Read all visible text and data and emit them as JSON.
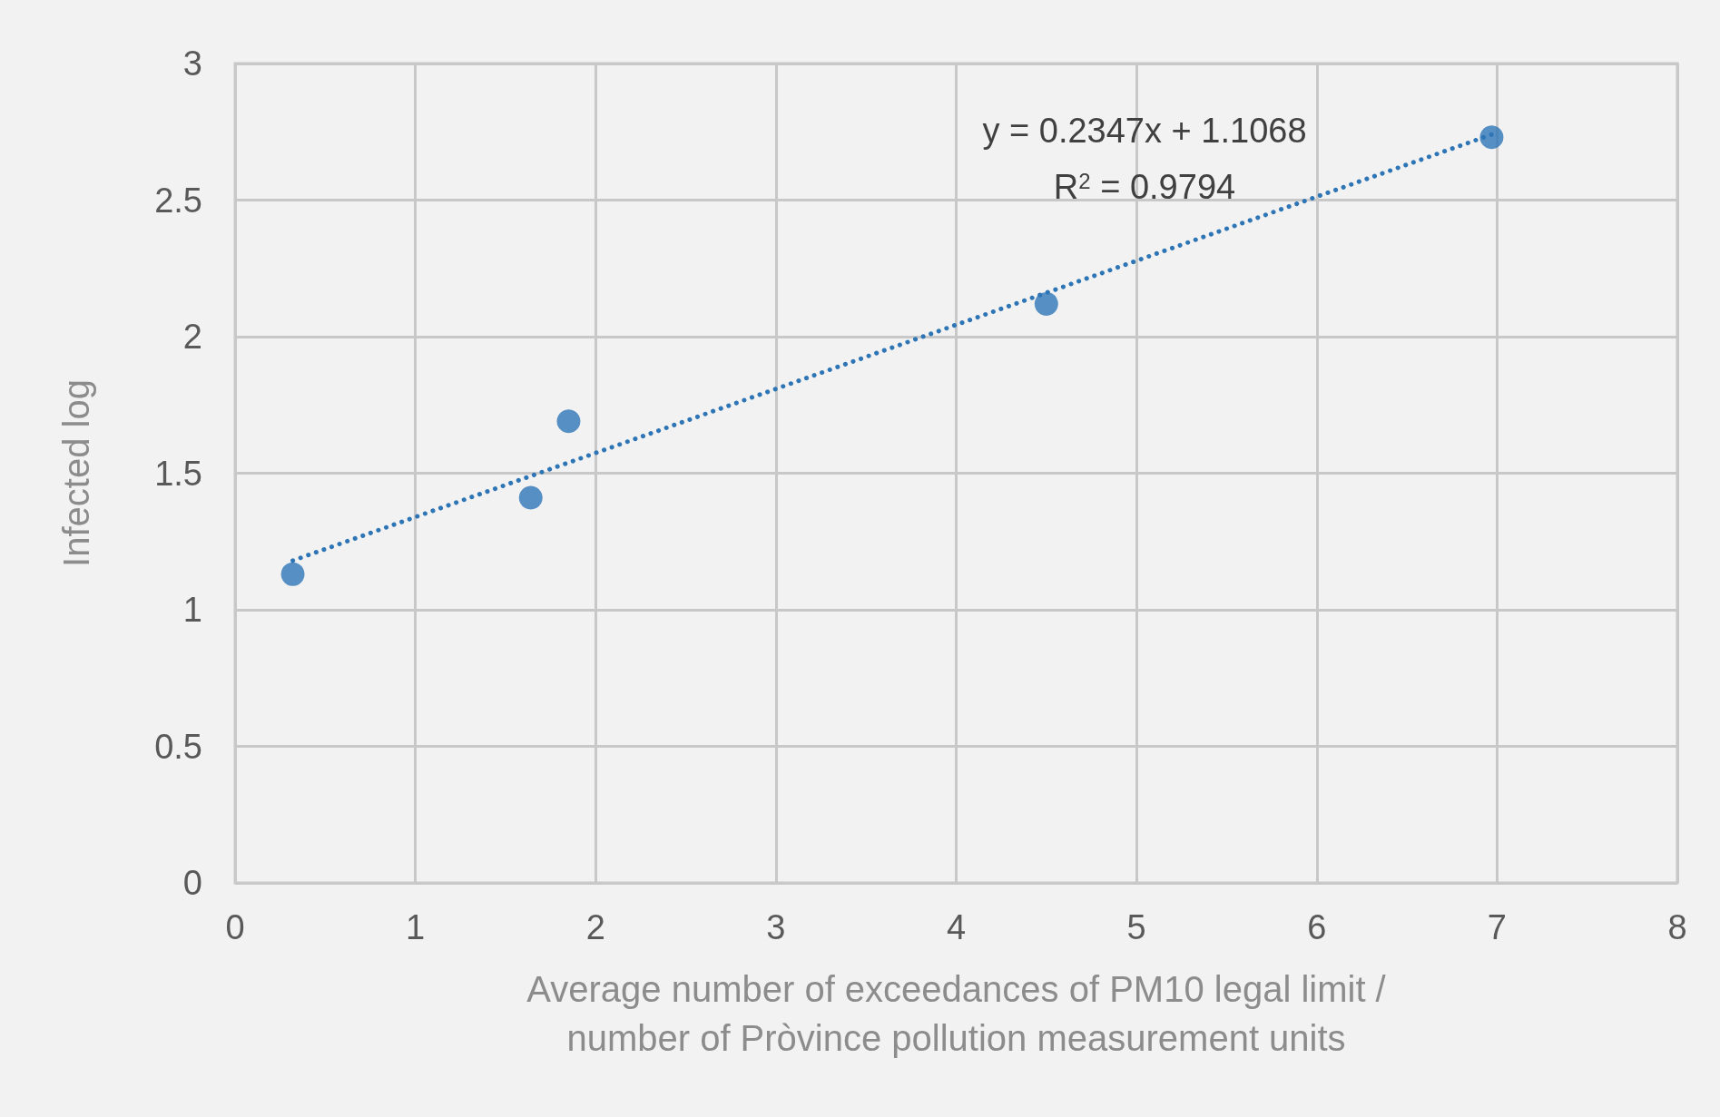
{
  "chart_data": {
    "type": "scatter",
    "xlabel": "Average number of exceedances of PM10 legal limit /\nnumber of Pròvince pollution measurement units",
    "ylabel": "Infected log",
    "series": [
      {
        "color": "#2e75b6",
        "x": [
          0.32,
          1.64,
          1.85,
          4.5,
          6.97
        ],
        "values": [
          1.13,
          1.41,
          1.69,
          2.12,
          2.73
        ]
      },
      {
        "type": "line",
        "color": "#2e75b6",
        "line_style": "dotted",
        "marker": "none",
        "x": [
          0.32,
          6.97
        ],
        "values": [
          1.18,
          2.74
        ]
      }
    ],
    "marker": "circle",
    "xlim": [
      0,
      8
    ],
    "xticks": [
      0,
      1,
      2,
      3,
      4,
      5,
      6,
      7,
      8
    ],
    "ylim": [
      0,
      3
    ],
    "yticks": [
      0,
      0.5,
      1,
      1.5,
      2,
      2.5,
      3
    ],
    "grid": true,
    "annotations": [
      "y = 0.2347x + 1.1068",
      "R$^{2}$ = 0.9794"
    ]
  }
}
